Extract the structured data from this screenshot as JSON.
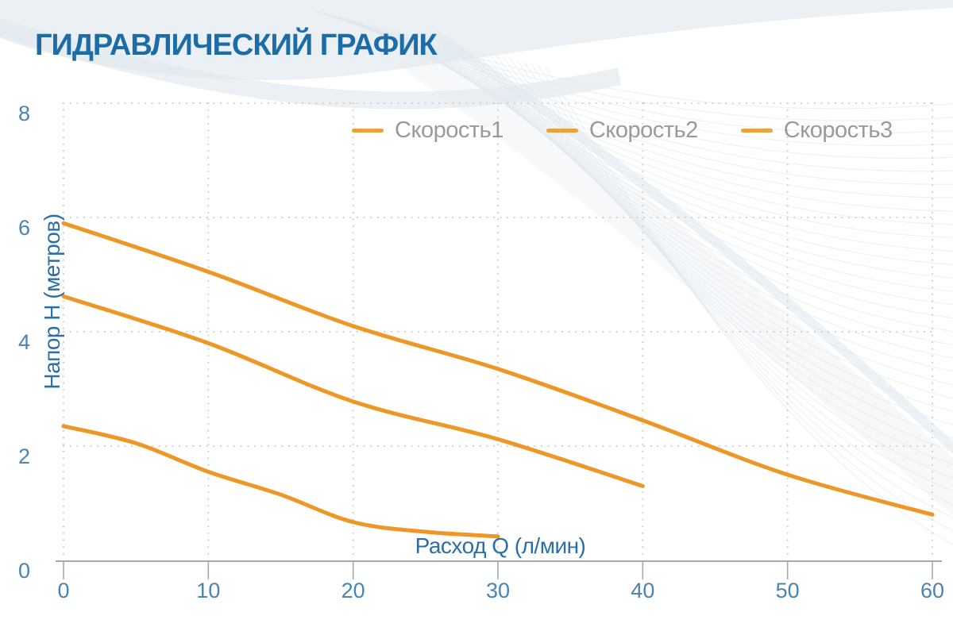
{
  "page": {
    "title": "ГИДРАВЛИЧЕСКИЙ ГРАФИК"
  },
  "colors": {
    "title": "#1c6ca7",
    "curve_orange": "#ee9626",
    "legend_dash": "#e9a23d",
    "legend_text": "#9a9a9a",
    "tick_label": "#4a84b2",
    "axis_title": "#2b6fa9",
    "grid_dots": "#c9c9c9",
    "axis_line": "#a8a8a8"
  },
  "chart_data": {
    "type": "line",
    "title": "ГИДРАВЛИЧЕСКИЙ ГРАФИК",
    "xlabel": "Расход Q (л/мин)",
    "ylabel": "Напор H (метров)",
    "xlim": [
      0,
      60
    ],
    "ylim": [
      0,
      8
    ],
    "x_ticks": [
      0,
      10,
      20,
      30,
      40,
      50,
      60
    ],
    "y_ticks": [
      0,
      2,
      4,
      6,
      8
    ],
    "grid": "dotted",
    "legend_position": "top-center",
    "series": [
      {
        "name": "Скорость1",
        "color": "#ee9626",
        "points": [
          [
            0,
            2.35
          ],
          [
            5,
            2.05
          ],
          [
            10,
            1.55
          ],
          [
            15,
            1.15
          ],
          [
            20,
            0.67
          ],
          [
            25,
            0.5
          ],
          [
            30,
            0.42
          ]
        ]
      },
      {
        "name": "Скорость2",
        "color": "#ee9626",
        "points": [
          [
            0,
            4.62
          ],
          [
            10,
            3.8
          ],
          [
            20,
            2.78
          ],
          [
            30,
            2.12
          ],
          [
            40,
            1.3
          ]
        ]
      },
      {
        "name": "Скорость3",
        "color": "#ee9626",
        "points": [
          [
            0,
            5.9
          ],
          [
            10,
            5.05
          ],
          [
            20,
            4.1
          ],
          [
            30,
            3.35
          ],
          [
            40,
            2.45
          ],
          [
            50,
            1.5
          ],
          [
            60,
            0.8
          ]
        ]
      }
    ]
  }
}
